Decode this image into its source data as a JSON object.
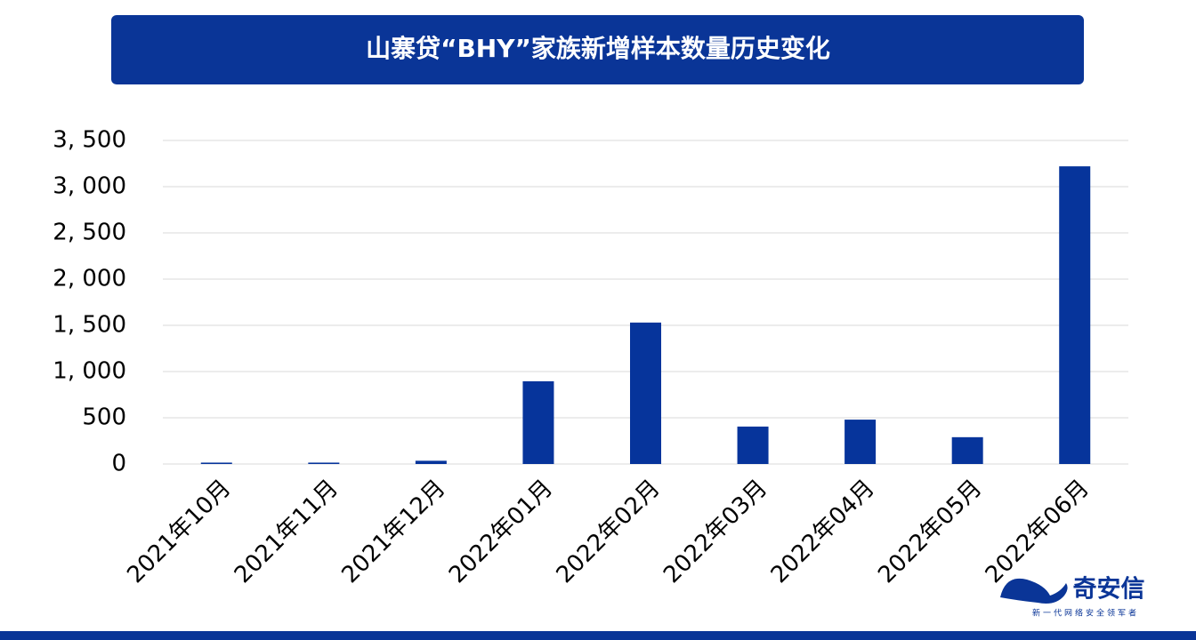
{
  "chart_data": {
    "type": "bar",
    "title": "山寨贷“BHY”家族新增样本数量历史变化",
    "categories": [
      "2021年10月",
      "2021年11月",
      "2021年12月",
      "2022年01月",
      "2022年02月",
      "2022年03月",
      "2022年04月",
      "2022年05月",
      "2022年06月"
    ],
    "values": [
      15,
      15,
      35,
      895,
      1530,
      405,
      480,
      290,
      3220
    ],
    "color": "#06349b",
    "ylim": [
      0,
      3500
    ],
    "yticks": [
      0,
      500,
      {
        "value": 1000,
        "label": "1, 000"
      },
      {
        "value": 1500,
        "label": "1, 500"
      },
      {
        "value": 2000,
        "label": "2, 000"
      },
      {
        "value": 2500,
        "label": "2, 500"
      },
      {
        "value": 3000,
        "label": "3, 000"
      },
      {
        "value": 3500,
        "label": "3, 500"
      }
    ],
    "grid": true
  },
  "logo": {
    "name": "奇安信",
    "slogan": "新一代网络安全领军者"
  }
}
